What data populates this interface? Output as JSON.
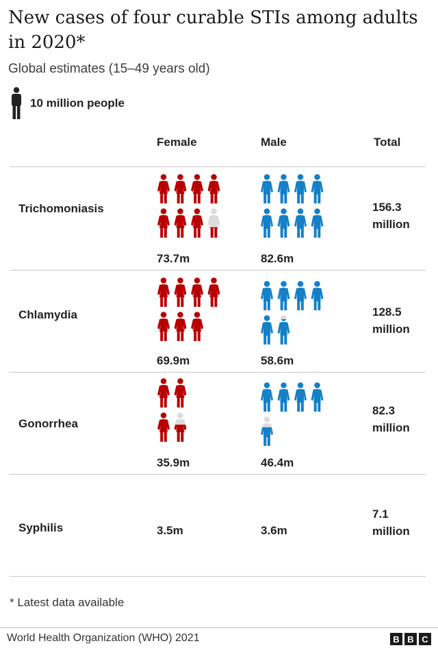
{
  "header": {
    "title": "New cases of four curable STIs among adults in 2020*",
    "subtitle": "Global estimates (15–49 years old)"
  },
  "legend": {
    "label": "10 million people",
    "icon": "person-icon"
  },
  "colors": {
    "female": "#b80000",
    "male": "#1380c8",
    "remainder": "#dcdcdc",
    "legend_icon": "#222222"
  },
  "columns": {
    "female": "Female",
    "male": "Male",
    "total": "Total"
  },
  "chart_data": {
    "type": "pictogram",
    "title": "New cases of four curable STIs among adults in 2020*",
    "subtitle": "Global estimates (15–49 years old)",
    "unit": "10 million people per icon",
    "categories": [
      "Trichomoniasis",
      "Chlamydia",
      "Gonorrhea",
      "Syphilis"
    ],
    "series": [
      {
        "name": "Female",
        "values": [
          73.7,
          69.9,
          35.9,
          3.5
        ]
      },
      {
        "name": "Male",
        "values": [
          82.6,
          58.6,
          46.4,
          3.6
        ]
      }
    ],
    "totals": [
      156.3,
      128.5,
      82.3,
      7.1
    ],
    "rows": [
      {
        "name": "Trichomoniasis",
        "female_label": "73.7m",
        "male_label": "82.6m",
        "total_value": "156.3",
        "total_unit": "million"
      },
      {
        "name": "Chlamydia",
        "female_label": "69.9m",
        "male_label": "58.6m",
        "total_value": "128.5",
        "total_unit": "million"
      },
      {
        "name": "Gonorrhea",
        "female_label": "35.9m",
        "male_label": "46.4m",
        "total_value": "82.3",
        "total_unit": "million"
      },
      {
        "name": "Syphilis",
        "female_label": "3.5m",
        "male_label": "3.6m",
        "total_value": "7.1",
        "total_unit": "million"
      }
    ]
  },
  "footer": {
    "note": "* Latest data available",
    "source": "World Health Organization (WHO) 2021",
    "logo_letters": [
      "B",
      "B",
      "C"
    ]
  }
}
